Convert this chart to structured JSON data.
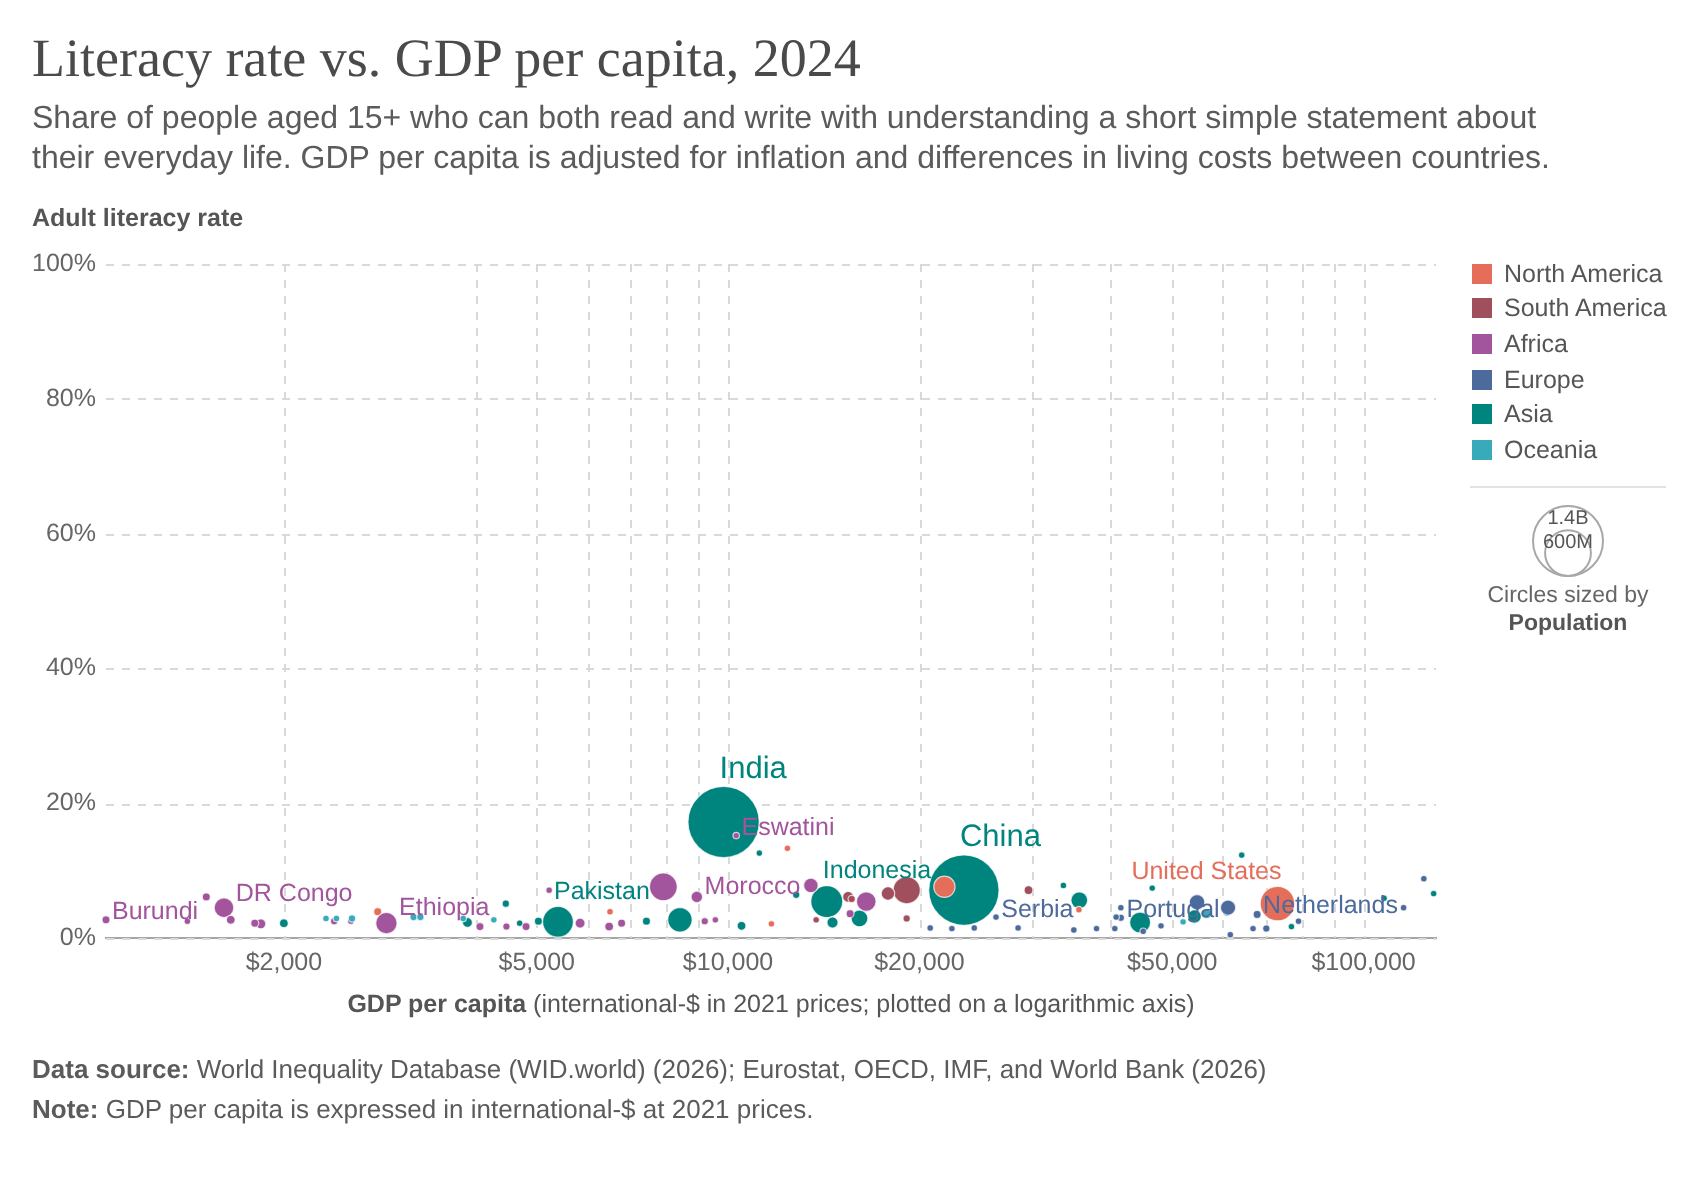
{
  "chart_data": {
    "type": "bubble",
    "title": "Literacy rate vs. GDP per capita, 2024",
    "subtitle": "Share of people aged 15+ who can both read and write with understanding a short simple statement about their everyday life. GDP per capita is adjusted for inflation and differences in living costs between countries.",
    "xlabel": "GDP per capita (international-$ in 2021 prices; plotted on a logarithmic axis)",
    "ylabel": "Adult literacy rate",
    "series": [
      {
        "name": "North America",
        "color": "#e56e5a",
        "x": [
          73200,
          21900,
          2810,
          11700,
          35650,
          6520,
          12400
        ],
        "values": [
          5.1,
          7.6,
          3.9,
          2.1,
          4.2,
          3.9,
          13.3
        ],
        "sizes": [
          340000000,
          130000000,
          18000000,
          12000000,
          12000000,
          12000000,
          12000000
        ]
      },
      {
        "name": "South America",
        "color": "#a0505c",
        "x": [
          19100,
          17850,
          15450,
          29700,
          15650,
          19100,
          13760
        ],
        "values": [
          7.1,
          6.6,
          6.1,
          7.1,
          5.8,
          2.9,
          2.7
        ],
        "sizes": [
          212000000,
          52000000,
          34000000,
          22000000,
          15000000,
          15000000,
          12000000
        ]
      },
      {
        "name": "Africa",
        "color": "#a2559c",
        "x": [
          7910,
          2900,
          1610,
          16500,
          13500,
          8930,
          5850,
          1840,
          1650,
          6500,
          4070,
          6800,
          1050,
          1510,
          4810,
          15560,
          1800,
          2400,
          4480,
          9190,
          5230,
          10300,
          9550,
          1410,
          2550
        ],
        "values": [
          7.6,
          2.2,
          4.5,
          5.4,
          7.8,
          6.1,
          2.2,
          2.1,
          2.7,
          1.7,
          1.7,
          2.2,
          2.7,
          6.1,
          1.7,
          3.6,
          2.2,
          2.5,
          1.7,
          2.5,
          7.1,
          15.2,
          2.7,
          2.5,
          2.5
        ],
        "sizes": [
          220000000,
          130000000,
          110000000,
          110000000,
          60000000,
          38000000,
          28000000,
          28000000,
          22000000,
          22000000,
          18000000,
          18000000,
          18000000,
          18000000,
          18000000,
          18000000,
          18000000,
          15000000,
          15000000,
          15000000,
          12000000,
          12000000,
          12000000,
          12000000,
          12000000
        ]
      },
      {
        "name": "Europe",
        "color": "#4c6a9c",
        "x": [
          54700,
          61200,
          68000,
          41500,
          70300,
          24400,
          40600,
          67000,
          26400,
          20800,
          28600,
          38000,
          40800,
          41500,
          48000,
          22500,
          61700,
          79000,
          115600,
          124400,
          35000,
          45000
        ],
        "values": [
          5.3,
          4.5,
          3.5,
          3.0,
          1.4,
          1.5,
          1.4,
          1.4,
          3.1,
          1.5,
          1.5,
          1.4,
          3.1,
          4.5,
          1.8,
          1.4,
          0.5,
          2.5,
          4.5,
          8.8,
          1.2,
          1.0
        ],
        "sizes": [
          68000000,
          66000000,
          18000000,
          15000000,
          15000000,
          12000000,
          12000000,
          12000000,
          12000000,
          12000000,
          12000000,
          12000000,
          12000000,
          12000000,
          12000000,
          12000000,
          12000000,
          12000000,
          12000000,
          12000000,
          12000000,
          12000000
        ]
      },
      {
        "name": "Asia",
        "color": "#00847e",
        "x": [
          9840,
          23500,
          14300,
          5400,
          8400,
          44500,
          16100,
          35700,
          54200,
          14600,
          3890,
          2000,
          10500,
          60900,
          7440,
          5030,
          4470,
          12800,
          33700,
          11200,
          46500,
          64300,
          107700,
          128900,
          77000,
          4700
        ],
        "values": [
          17.2,
          7.1,
          5.4,
          2.4,
          2.7,
          2.3,
          2.9,
          5.6,
          3.2,
          2.3,
          2.3,
          2.2,
          1.8,
          3.9,
          2.5,
          2.5,
          5.1,
          6.4,
          7.8,
          12.6,
          7.4,
          12.3,
          5.9,
          6.6,
          1.7,
          2.2
        ],
        "sizes": [
          1450000000,
          1410000000,
          290000000,
          270000000,
          170000000,
          125000000,
          80000000,
          80000000,
          52000000,
          35000000,
          28000000,
          22000000,
          22000000,
          22000000,
          18000000,
          18000000,
          15000000,
          15000000,
          12000000,
          12000000,
          12000000,
          12000000,
          12000000,
          12000000,
          12000000,
          12000000
        ]
      },
      {
        "name": "Oceania",
        "color": "#38aaba",
        "x": [
          56600,
          2560,
          3200,
          3280,
          2330,
          2420,
          3830,
          4280,
          52000
        ],
        "values": [
          3.6,
          2.9,
          3.1,
          3.1,
          2.9,
          2.9,
          2.9,
          2.7,
          2.4
        ],
        "sizes": [
          27000000,
          15000000,
          15000000,
          15000000,
          12000000,
          12000000,
          12000000,
          12000000,
          12000000
        ]
      }
    ],
    "xlim": [
      1050,
      130000
    ],
    "ylim": [
      0,
      100
    ],
    "xticks": [
      {
        "value": 2000,
        "label": "$2,000"
      },
      {
        "value": 4000,
        "label": null
      },
      {
        "value": 5000,
        "label": "$5,000"
      },
      {
        "value": 6000,
        "label": null
      },
      {
        "value": 7000,
        "label": null
      },
      {
        "value": 8000,
        "label": null
      },
      {
        "value": 9000,
        "label": null
      },
      {
        "value": 10000,
        "label": "$10,000"
      },
      {
        "value": 20000,
        "label": "$20,000"
      },
      {
        "value": 30000,
        "label": null
      },
      {
        "value": 40000,
        "label": null
      },
      {
        "value": 50000,
        "label": "$50,000"
      },
      {
        "value": 60000,
        "label": null
      },
      {
        "value": 70000,
        "label": null
      },
      {
        "value": 80000,
        "label": null
      },
      {
        "value": 90000,
        "label": null
      },
      {
        "value": 100000,
        "label": "$100,000"
      }
    ],
    "yticks": [
      {
        "value": 0,
        "label": "0%"
      },
      {
        "value": 20,
        "label": "20%"
      },
      {
        "value": 40,
        "label": "40%"
      },
      {
        "value": 60,
        "label": "60%"
      },
      {
        "value": 80,
        "label": "80%"
      },
      {
        "value": 100,
        "label": "100%"
      }
    ],
    "log": "x",
    "grid": true,
    "legend": "top right",
    "size_legend": [
      {
        "value": 1400000000,
        "label": "1.4B"
      },
      {
        "value": 600000000,
        "label": "600M"
      }
    ],
    "annotations": [
      "Circles sized by Population",
      "Data source: World Inequality Database (WID.world) (2026); Eurostat, OECD, IMF, and World Bank (2026)",
      "Note: GDP per capita is expressed in international-$ at 2021 prices.",
      {
        "text": "India",
        "x": 9840,
        "y": 17.2
      },
      {
        "text": "China",
        "x": 23500,
        "y": 7.1
      },
      {
        "text": "Indonesia",
        "x": 14300,
        "y": 5.4
      },
      {
        "text": "Pakistan",
        "x": 5400,
        "y": 2.4
      },
      {
        "text": "United States",
        "x": 73200,
        "y": 5.1
      },
      {
        "text": "Burundi",
        "x": 1050,
        "y": 2.7
      },
      {
        "text": "DR Congo",
        "x": 1610,
        "y": 4.5
      },
      {
        "text": "Ethiopia",
        "x": 2900,
        "y": 2.2
      },
      {
        "text": "Eswatini",
        "x": 10300,
        "y": 15.2
      },
      {
        "text": "Morocco",
        "x": 8930,
        "y": 6.1
      },
      {
        "text": "Serbia",
        "x": 26400,
        "y": 3.1
      },
      {
        "text": "Portugal",
        "x": 41500,
        "y": 3.0
      },
      {
        "text": "Netherlands",
        "x": 68000,
        "y": 3.5
      }
    ]
  }
}
